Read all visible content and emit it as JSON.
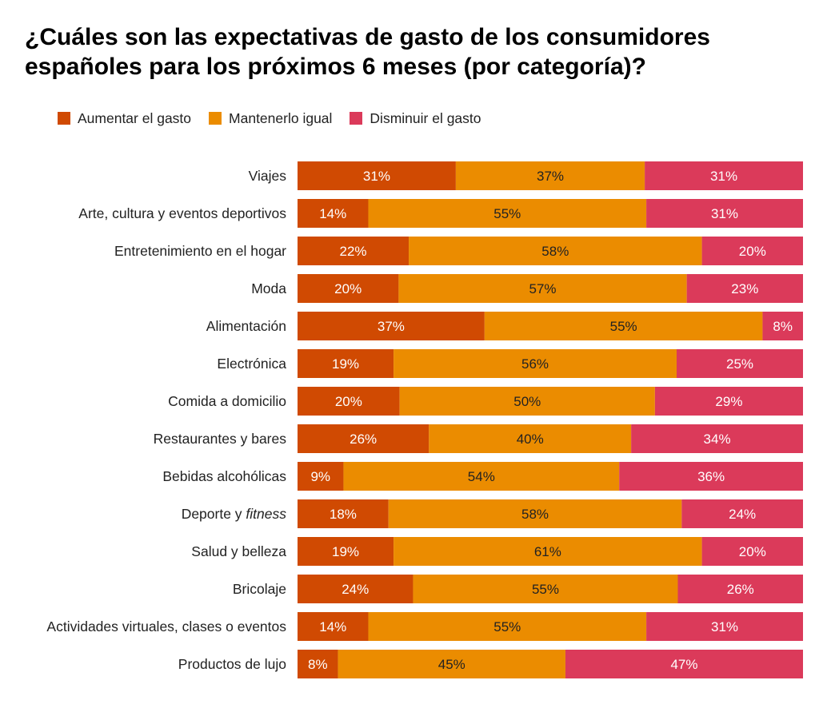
{
  "chart_data": {
    "type": "bar",
    "orientation": "horizontal",
    "stacked": true,
    "title_line1": "¿Cuáles son las expectativas de gasto de los consumidores",
    "title_line2": "españoles para los próximos 6 meses (por categoría)?",
    "legend_position": "top-left",
    "grid": false,
    "xlim": [
      0,
      100
    ],
    "categories": [
      "Viajes",
      "Arte, cultura y eventos deportivos",
      "Entretenimiento en el hogar",
      "Moda",
      "Alimentación",
      "Electrónica",
      "Comida a domicilio",
      "Restaurantes y bares",
      "Bebidas alcohólicas",
      "Deporte y fitness",
      "Salud y belleza",
      "Bricolaje",
      "Actividades virtuales, clases o eventos",
      "Productos de lujo"
    ],
    "series": [
      {
        "name": "Aumentar el gasto",
        "color": "#d04a02",
        "label_color": "#ffffff",
        "values": [
          31,
          14,
          22,
          20,
          37,
          19,
          20,
          26,
          9,
          18,
          19,
          24,
          14,
          8
        ]
      },
      {
        "name": "Mantenerlo igual",
        "color": "#eb8c00",
        "label_color": "#222222",
        "values": [
          37,
          55,
          58,
          57,
          55,
          56,
          50,
          40,
          54,
          58,
          61,
          55,
          55,
          45
        ]
      },
      {
        "name": "Disminuir el gasto",
        "color": "#db3a5a",
        "label_color": "#ffffff",
        "values": [
          31,
          31,
          20,
          23,
          8,
          25,
          29,
          34,
          36,
          24,
          20,
          26,
          31,
          47
        ]
      }
    ],
    "value_suffix": "%"
  }
}
